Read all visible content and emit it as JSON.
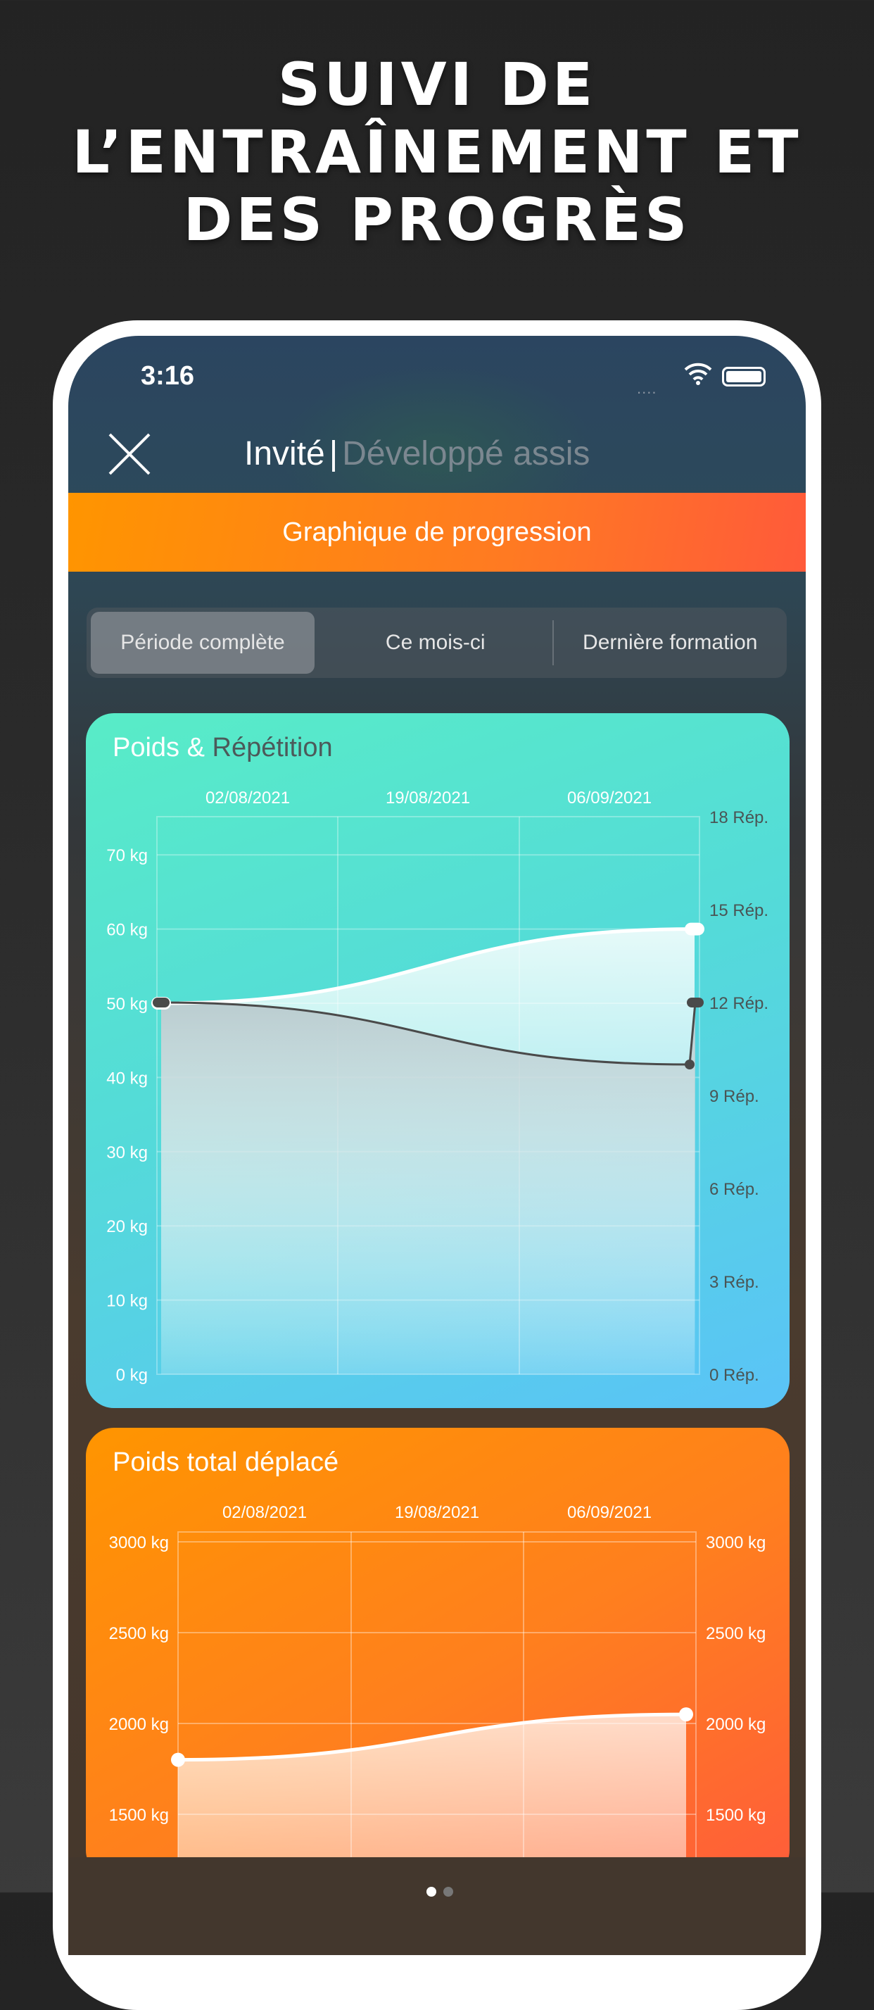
{
  "headline": [
    "SUIVI DE",
    "L’ENTRAÎNEMENT ET",
    "DES PROGRÈS"
  ],
  "status": {
    "time": "3:16",
    "signal": "....",
    "wifi_icon": "wifi-icon",
    "battery_icon": "battery-icon"
  },
  "nav": {
    "user": "Invité",
    "separator": "|",
    "exercise": "Développé assis",
    "close_icon": "close-icon"
  },
  "banner": "Graphique de progression",
  "segments": {
    "items": [
      "Période complète",
      "Ce mois-ci",
      "Dernière formation"
    ],
    "selected": "Période complète"
  },
  "colors": {
    "accent_orange": "#ff8a1a",
    "chart1_teal": "#55e0d0",
    "chart1_blue": "#5ac3f7"
  },
  "chart_data": [
    {
      "type": "area",
      "title": "Poids & Répétition",
      "title_parts": [
        "Poids & ",
        "Répétition"
      ],
      "x_ticks": [
        "02/08/2021",
        "19/08/2021",
        "06/09/2021"
      ],
      "y_left": {
        "ticks": [
          "0 kg",
          "10 kg",
          "20 kg",
          "30 kg",
          "40 kg",
          "50 kg",
          "60 kg",
          "70 kg"
        ],
        "range": [
          0,
          75
        ]
      },
      "y_right": {
        "ticks": [
          "0 Rép.",
          "3 Rép.",
          "6 Rép.",
          "9 Rép.",
          "12 Rép.",
          "15 Rép.",
          "18 Rép."
        ],
        "range": [
          0,
          18
        ]
      },
      "series": [
        {
          "axis": "left",
          "unit": "kg",
          "values": [
            50,
            60
          ],
          "color": "#ffffff"
        },
        {
          "axis": "right",
          "unit": "Rép.",
          "values": [
            12,
            10,
            12
          ],
          "color": "#4a4a4a"
        }
      ],
      "grid": true
    },
    {
      "type": "area",
      "title": "Poids total déplacé",
      "x_ticks": [
        "02/08/2021",
        "19/08/2021",
        "06/09/2021"
      ],
      "y_left": {
        "ticks": [
          "1500 kg",
          "2000 kg",
          "2500 kg",
          "3000 kg"
        ]
      },
      "y_right": {
        "ticks": [
          "1500 kg",
          "2000 kg",
          "2500 kg",
          "3000 kg"
        ]
      },
      "series": [
        {
          "unit": "kg",
          "values": [
            1800,
            2050
          ],
          "color": "#ffffff"
        }
      ],
      "grid": true
    }
  ]
}
